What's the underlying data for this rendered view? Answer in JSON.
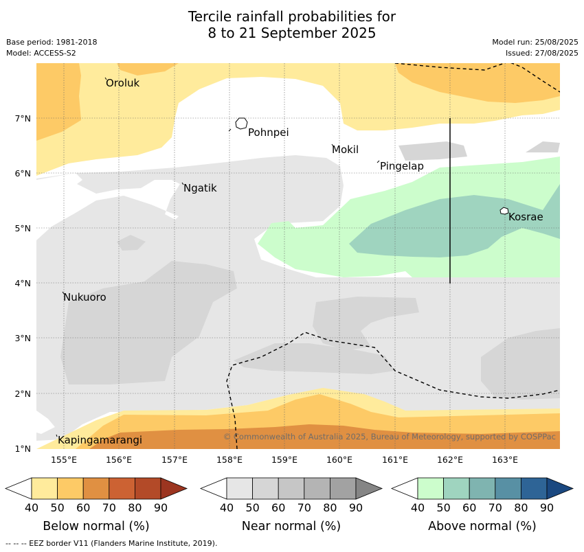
{
  "title": {
    "line1": "Tercile rainfall probabilities for",
    "line2": "8 to 21 September 2025"
  },
  "meta": {
    "base_period": "Base period: 1981-2018",
    "model": "Model: ACCESS-S2",
    "model_run": "Model run: 25/08/2025",
    "issued": "Issued: 27/08/2025"
  },
  "map": {
    "lat_labels": [
      "7°N",
      "6°N",
      "5°N",
      "4°N",
      "3°N",
      "2°N",
      "1°N"
    ],
    "lon_labels": [
      "155°E",
      "156°E",
      "157°E",
      "158°E",
      "159°E",
      "160°E",
      "161°E",
      "162°E",
      "163°E"
    ],
    "places": [
      "Oroluk",
      "Pohnpei",
      "Mokil",
      "Pingelap",
      "Ngatik",
      "Kosrae",
      "Nukuoro",
      "Kapingamarangi"
    ],
    "copyright": "© Commonwealth of Australia 2025, Bureau of Meteorology, supported by COSPPac"
  },
  "legend": {
    "below": {
      "label": "Below normal (%)",
      "ticks": [
        "40",
        "50",
        "60",
        "70",
        "80",
        "90"
      ],
      "colors": [
        "#ffffff",
        "#ffeb9c",
        "#fdca66",
        "#e09042",
        "#cc6233",
        "#b34a28",
        "#9c3520"
      ]
    },
    "near": {
      "label": "Near normal (%)",
      "ticks": [
        "40",
        "50",
        "60",
        "70",
        "80",
        "90"
      ],
      "colors": [
        "#ffffff",
        "#e6e6e6",
        "#d6d6d6",
        "#c6c6c6",
        "#b4b4b4",
        "#a2a2a2",
        "#858585"
      ]
    },
    "above": {
      "label": "Above normal (%)",
      "ticks": [
        "40",
        "50",
        "60",
        "70",
        "80",
        "90"
      ],
      "colors": [
        "#ffffff",
        "#ccfdcc",
        "#9fd4bf",
        "#7fb4b0",
        "#5890a4",
        "#2e6496",
        "#1a4880"
      ]
    }
  },
  "footer": "--  --  -- EEZ border V11 (Flanders Marine Institute, 2019)."
}
